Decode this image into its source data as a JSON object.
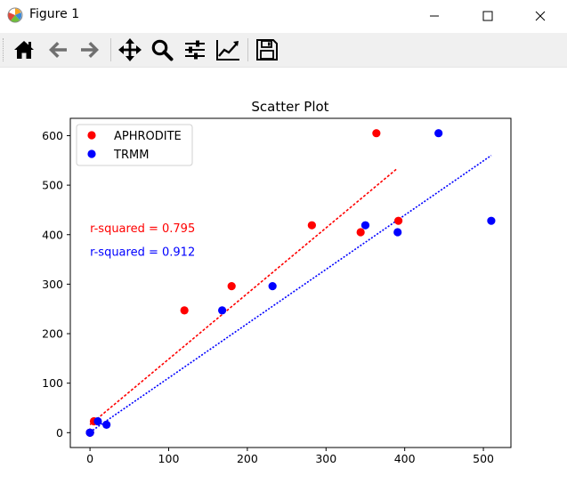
{
  "window": {
    "title": "Figure 1"
  },
  "toolbar": {
    "buttons": [
      {
        "name": "home-icon",
        "label": "Home"
      },
      {
        "name": "back-arrow-icon",
        "label": "Back"
      },
      {
        "name": "forward-arrow-icon",
        "label": "Forward"
      },
      {
        "name": "pan-icon",
        "label": "Pan"
      },
      {
        "name": "zoom-icon",
        "label": "Zoom"
      },
      {
        "name": "configure-subplots-icon",
        "label": "Subplots"
      },
      {
        "name": "edit-axis-icon",
        "label": "Customize"
      },
      {
        "name": "save-icon",
        "label": "Save"
      }
    ]
  },
  "colors": {
    "aphrodite": "#ff0000",
    "trmm": "#0000ff",
    "disabled_icon": "#707070"
  },
  "chart_data": {
    "type": "scatter",
    "title": "Scatter Plot",
    "xlabel": "",
    "ylabel": "",
    "xlim": [
      -25,
      535
    ],
    "ylim": [
      -30,
      635
    ],
    "xticks": [
      0,
      100,
      200,
      300,
      400,
      500
    ],
    "yticks": [
      0,
      100,
      200,
      300,
      400,
      500,
      600
    ],
    "grid": false,
    "legend_position": "top-left",
    "series": [
      {
        "name": "APHRODITE",
        "color": "#ff0000",
        "points": [
          [
            0,
            0
          ],
          [
            0,
            0
          ],
          [
            0,
            0
          ],
          [
            5,
            23
          ],
          [
            120,
            247
          ],
          [
            180,
            296
          ],
          [
            282,
            419
          ],
          [
            344,
            405
          ],
          [
            364,
            605
          ],
          [
            392,
            428
          ]
        ],
        "fit_line": [
          [
            0,
            16
          ],
          [
            390,
            533
          ]
        ],
        "fit_style": "dashed"
      },
      {
        "name": "TRMM",
        "color": "#0000ff",
        "points": [
          [
            0,
            0
          ],
          [
            0,
            0
          ],
          [
            0,
            0
          ],
          [
            10,
            23
          ],
          [
            21,
            16
          ],
          [
            168,
            247
          ],
          [
            232,
            296
          ],
          [
            350,
            419
          ],
          [
            391,
            405
          ],
          [
            443,
            605
          ],
          [
            510,
            428
          ]
        ],
        "fit_line": [
          [
            0,
            1
          ],
          [
            510,
            560
          ]
        ],
        "fit_style": "dotted"
      }
    ],
    "annotations": [
      {
        "text": "r-squared = 0.795",
        "color": "#ff0000",
        "x": 0,
        "y": 405
      },
      {
        "text": "r-squared = 0.912",
        "color": "#0000ff",
        "x": 0,
        "y": 357
      }
    ]
  }
}
